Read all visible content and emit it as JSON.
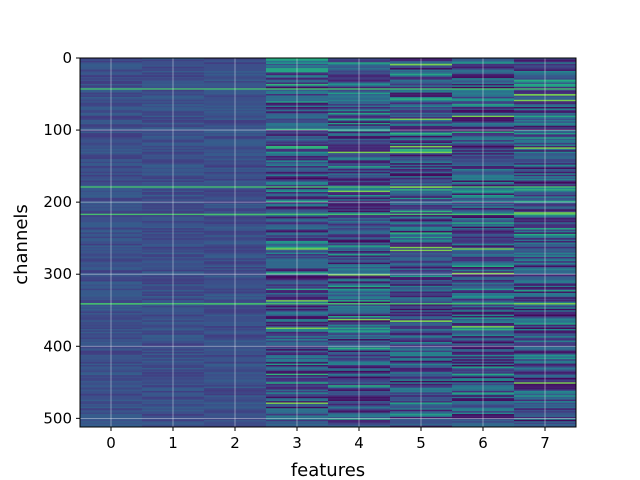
{
  "chart_data": {
    "type": "heatmap",
    "title": "",
    "xlabel": "features",
    "ylabel": "channels",
    "x_categories": [
      "0",
      "1",
      "2",
      "3",
      "4",
      "5",
      "6",
      "7"
    ],
    "xlim": [
      -0.5,
      7.5
    ],
    "ylim": [
      512,
      0
    ],
    "y_ticks": [
      0,
      100,
      200,
      300,
      400,
      500
    ],
    "y_tick_labels": [
      "0",
      "100",
      "200",
      "300",
      "400",
      "500"
    ],
    "rows": 512,
    "colormap": "viridis",
    "grid": true,
    "color_base": "#3b528b",
    "highlights": {
      "all_columns": [
        42,
        178,
        217,
        341
      ],
      "per_column": [
        [],
        [],
        [],
        [
          265,
          337,
          375,
          478
        ],
        [
          130,
          185,
          300,
          362
        ],
        [
          8,
          85,
          122,
          130,
          178,
          262,
          267,
          365
        ],
        [
          80,
          265,
          298,
          372
        ],
        [
          50,
          58,
          125,
          215,
          340,
          450
        ]
      ]
    }
  }
}
